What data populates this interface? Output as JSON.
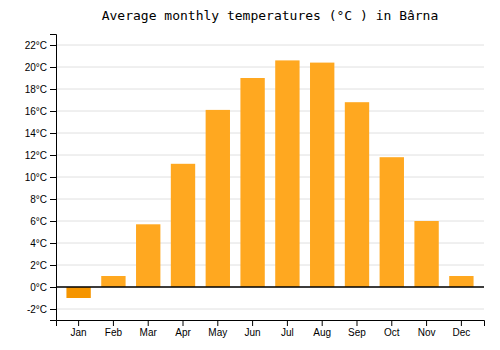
{
  "chart_data": {
    "type": "bar",
    "title": "Average monthly temperatures (°C ) in Bârna",
    "categories": [
      "Jan",
      "Feb",
      "Mar",
      "Apr",
      "May",
      "Jun",
      "Jul",
      "Aug",
      "Sep",
      "Oct",
      "Nov",
      "Dec"
    ],
    "values": [
      -1.0,
      1.0,
      5.7,
      11.2,
      16.1,
      19.0,
      20.6,
      20.4,
      16.8,
      11.8,
      6.0,
      1.0
    ],
    "colors": [
      "#F59500",
      "#FFA820",
      "#FFA820",
      "#FFA820",
      "#FFA820",
      "#FFA820",
      "#FFA820",
      "#FFA820",
      "#FFA820",
      "#FFA820",
      "#FFA820",
      "#FFA820"
    ],
    "ylim": [
      -3,
      23
    ],
    "yticks": [
      {
        "value": -2,
        "label": "-2°C"
      },
      {
        "value": 0,
        "label": "0°C"
      },
      {
        "value": 2,
        "label": "2°C"
      },
      {
        "value": 4,
        "label": "4°C"
      },
      {
        "value": 6,
        "label": "6°C"
      },
      {
        "value": 8,
        "label": "8°C"
      },
      {
        "value": 10,
        "label": "10°C"
      },
      {
        "value": 12,
        "label": "12°C"
      },
      {
        "value": 14,
        "label": "14°C"
      },
      {
        "value": 16,
        "label": "16°C"
      },
      {
        "value": 18,
        "label": "18°C"
      },
      {
        "value": 20,
        "label": "20°C"
      },
      {
        "value": 22,
        "label": "22°C"
      }
    ],
    "grid": true
  }
}
